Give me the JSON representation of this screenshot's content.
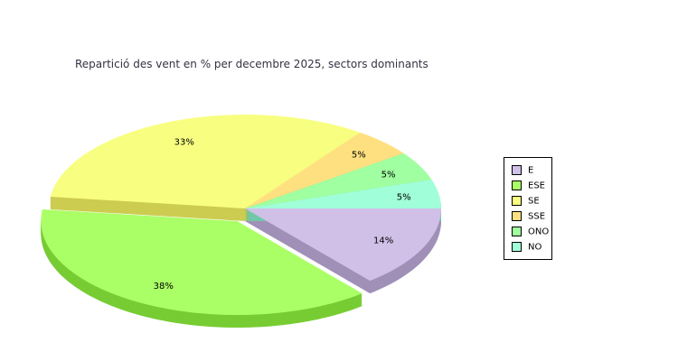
{
  "chart_data": {
    "type": "pie",
    "title": "Repartició des vent en % per decembre 2025, sectors dominants",
    "categories": [
      "E",
      "ESE",
      "SE",
      "SSE",
      "ONO",
      "NO"
    ],
    "values": [
      14,
      38,
      33,
      5,
      5,
      5
    ],
    "labels": [
      "14%",
      "38%",
      "33%",
      "5%",
      "5%",
      "5%"
    ],
    "colors": [
      "#d0c0e8",
      "#aaff66",
      "#f8ff80",
      "#ffe080",
      "#a0ffa0",
      "#a0ffd8"
    ],
    "side_colors": [
      "#a090b8",
      "#77cc33",
      "#cccc50",
      "#c8b060",
      "#78c878",
      "#70c8a8"
    ],
    "exploded": "ESE",
    "style": "3d",
    "legend_position": "right"
  }
}
